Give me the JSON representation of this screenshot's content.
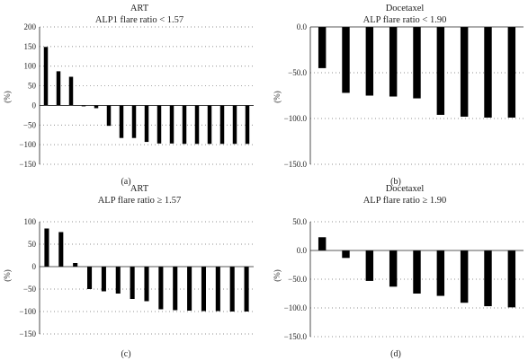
{
  "figure": {
    "panel_labels": [
      "(a)",
      "(b)",
      "(c)",
      "(d)"
    ]
  },
  "chart_data": [
    {
      "type": "bar",
      "title": "ART",
      "subtitle": "ALP1 flare ratio < 1.57",
      "ylabel": "(%)",
      "ylim": [
        -150,
        200
      ],
      "yticks": [
        200,
        150,
        100,
        50,
        0,
        -50,
        -100,
        -150
      ],
      "ytick_labels": [
        "200",
        "150",
        "100",
        "50",
        "0",
        "−50",
        "−100",
        "−150"
      ],
      "grid": true,
      "values": [
        149,
        87,
        73,
        -2,
        -7,
        -52,
        -83,
        -83,
        -93,
        -97,
        -97,
        -98,
        -98,
        -98,
        -98,
        -98,
        -98
      ],
      "color": "#000000"
    },
    {
      "type": "bar",
      "title": "Docetaxel",
      "subtitle": "ALP flare ratio < 1.90",
      "ylabel": "(%)",
      "ylim": [
        -150,
        0
      ],
      "yticks": [
        0,
        -50,
        -100,
        -150
      ],
      "ytick_labels": [
        "0.0",
        "−50.0",
        "−100.0",
        "−150.0"
      ],
      "grid": true,
      "values": [
        -45,
        -72,
        -75,
        -76,
        -78,
        -96,
        -98,
        -99,
        -99
      ],
      "color": "#000000"
    },
    {
      "type": "bar",
      "title": "ART",
      "subtitle": "ALP flare ratio ≥ 1.57",
      "ylabel": "(%)",
      "ylim": [
        -150,
        100
      ],
      "yticks": [
        100,
        50,
        0,
        -50,
        -100,
        -150
      ],
      "ytick_labels": [
        "100",
        "50",
        "0",
        "−50",
        "−100",
        "−150"
      ],
      "grid": true,
      "values": [
        85,
        77,
        8,
        -50,
        -55,
        -60,
        -72,
        -77,
        -95,
        -97,
        -98,
        -99,
        -99,
        -100,
        -100
      ],
      "color": "#000000"
    },
    {
      "type": "bar",
      "title": "Docetaxel",
      "subtitle": "ALP flare ratio ≥ 1.90",
      "ylabel": "(%)",
      "ylim": [
        -150,
        50
      ],
      "yticks": [
        50,
        0,
        -50,
        -100,
        -150
      ],
      "ytick_labels": [
        "50.0",
        "0.0",
        "−50.0",
        "−100.0",
        "−150.0"
      ],
      "grid": true,
      "values": [
        23,
        -13,
        -53,
        -63,
        -75,
        -79,
        -91,
        -97,
        -99
      ],
      "color": "#000000"
    }
  ]
}
